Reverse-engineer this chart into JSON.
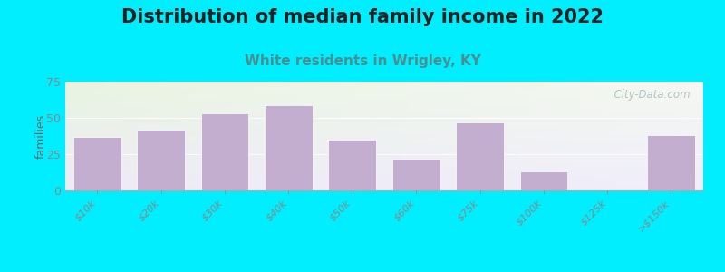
{
  "title": "Distribution of median family income in 2022",
  "subtitle": "White residents in Wrigley, KY",
  "categories": [
    "$10k",
    "$20k",
    "$30k",
    "$40k",
    "$50k",
    "$60k",
    "$75k",
    "$100k",
    "$125k",
    ">$150k"
  ],
  "values": [
    37,
    42,
    53,
    59,
    35,
    22,
    47,
    13,
    0,
    38
  ],
  "bar_color": "#c4aed0",
  "background_outer": "#00eeff",
  "ylabel": "families",
  "ylim": [
    0,
    75
  ],
  "yticks": [
    0,
    25,
    50,
    75
  ],
  "title_fontsize": 15,
  "subtitle_fontsize": 11,
  "title_color": "#222222",
  "subtitle_color": "#4a8f8f",
  "watermark": "  City-Data.com",
  "watermark_color": "#aababa",
  "bg_left_top": "#e8f5e0",
  "bg_right_bottom": "#ece6f5"
}
